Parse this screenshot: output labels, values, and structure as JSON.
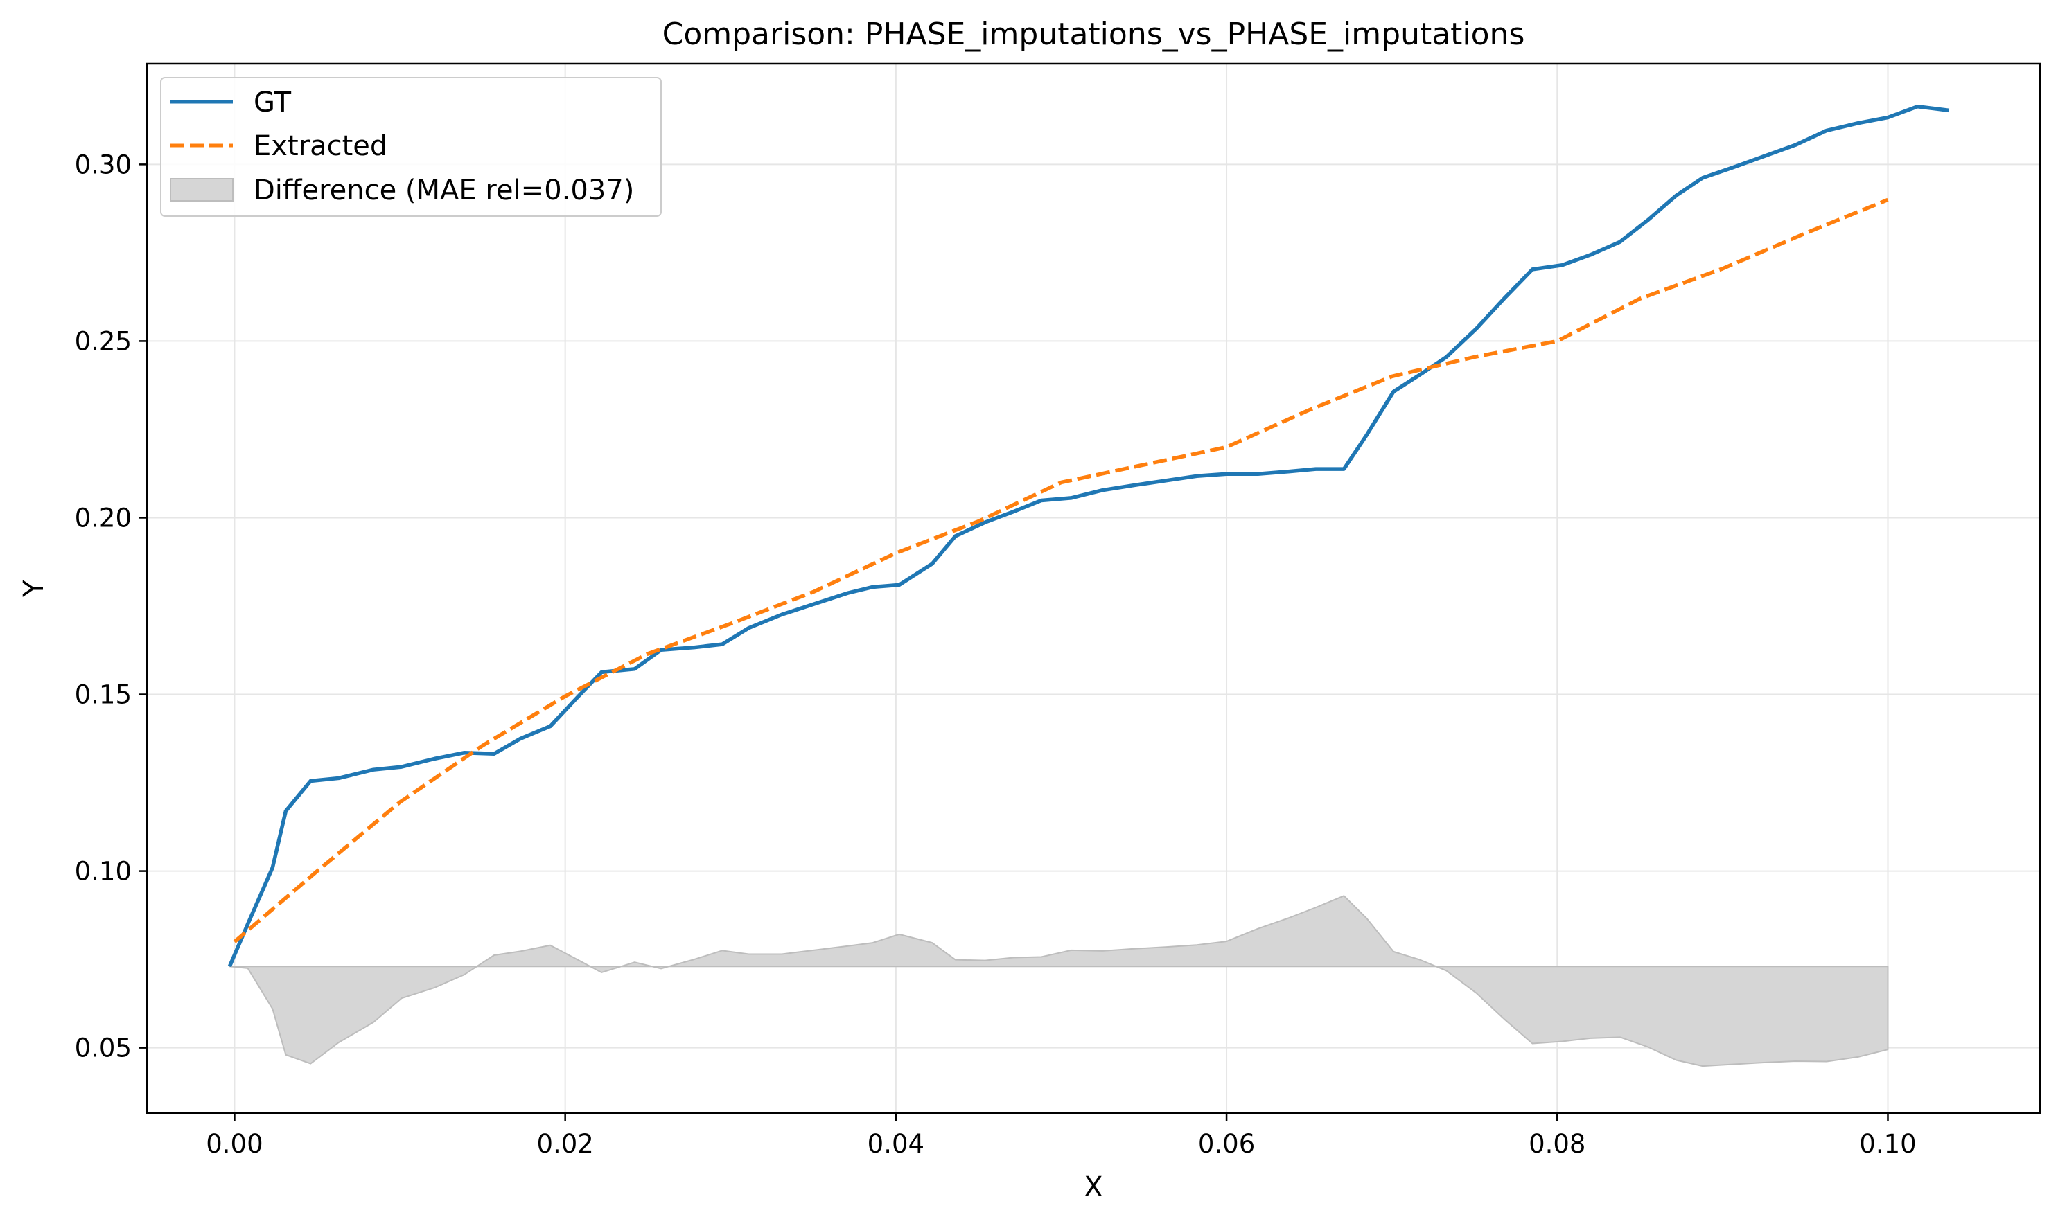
{
  "chart_data": {
    "type": "line",
    "title": "Comparison: PHASE_imputations_vs_PHASE_imputations",
    "xlabel": "X",
    "ylabel": "Y",
    "xlim": [
      -0.0053,
      0.1092
    ],
    "ylim": [
      0.0315,
      0.3285
    ],
    "xticks": [
      0.0,
      0.02,
      0.04,
      0.06,
      0.08,
      0.1
    ],
    "xtick_labels": [
      "0.00",
      "0.02",
      "0.04",
      "0.06",
      "0.08",
      "0.10"
    ],
    "yticks": [
      0.05,
      0.1,
      0.15,
      0.2,
      0.25,
      0.3
    ],
    "ytick_labels": [
      "0.05",
      "0.10",
      "0.15",
      "0.20",
      "0.25",
      "0.30"
    ],
    "grid": true,
    "legend_position": "top-left",
    "colors": {
      "gt": "#1f77b4",
      "extracted": "#ff7f0e",
      "difference": "#d6d6d6",
      "difference_edge": "#bdbdbd",
      "grid": "#e6e6e6",
      "axes": "#000000"
    },
    "series": [
      {
        "name": "GT",
        "style": "solid",
        "x": [
          -0.0003,
          0.0008,
          0.0023,
          0.0031,
          0.0046,
          0.0063,
          0.0084,
          0.0101,
          0.0121,
          0.0139,
          0.0157,
          0.0173,
          0.0191,
          0.0208,
          0.0222,
          0.0242,
          0.0258,
          0.0278,
          0.0295,
          0.0311,
          0.0331,
          0.0352,
          0.0371,
          0.0386,
          0.0402,
          0.0422,
          0.0436,
          0.0454,
          0.0471,
          0.0488,
          0.0506,
          0.0525,
          0.0544,
          0.0563,
          0.0582,
          0.06,
          0.0619,
          0.0638,
          0.0654,
          0.0671,
          0.0685,
          0.0701,
          0.0717,
          0.0733,
          0.0751,
          0.0768,
          0.0785,
          0.0803,
          0.082,
          0.0838,
          0.0855,
          0.0872,
          0.0888,
          0.0906,
          0.0925,
          0.0944,
          0.0963,
          0.0982,
          0.1,
          0.1018,
          0.1037
        ],
        "values": [
          0.073,
          0.085,
          0.101,
          0.117,
          0.1255,
          0.1263,
          0.1287,
          0.1295,
          0.1318,
          0.1335,
          0.1332,
          0.1375,
          0.141,
          0.1495,
          0.1563,
          0.1572,
          0.1626,
          0.1633,
          0.1642,
          0.1688,
          0.1726,
          0.1758,
          0.1787,
          0.1804,
          0.181,
          0.187,
          0.1948,
          0.1987,
          0.2017,
          0.2049,
          0.2056,
          0.2078,
          0.2092,
          0.2105,
          0.2118,
          0.2124,
          0.2124,
          0.2131,
          0.2138,
          0.2138,
          0.2236,
          0.2357,
          0.2405,
          0.2455,
          0.2535,
          0.2621,
          0.2703,
          0.2715,
          0.2744,
          0.2781,
          0.2843,
          0.2912,
          0.2962,
          0.2991,
          0.3023,
          0.3055,
          0.3096,
          0.3117,
          0.3133,
          0.3164,
          0.3153
        ]
      },
      {
        "name": "Extracted",
        "style": "dashed",
        "x": [
          0.0,
          0.005,
          0.01,
          0.015,
          0.02,
          0.025,
          0.03,
          0.035,
          0.04,
          0.045,
          0.05,
          0.055,
          0.06,
          0.065,
          0.07,
          0.075,
          0.08,
          0.085,
          0.09,
          0.095,
          0.1
        ],
        "values": [
          0.08,
          0.1,
          0.1195,
          0.1355,
          0.1495,
          0.1615,
          0.17,
          0.179,
          0.19,
          0.199,
          0.21,
          0.215,
          0.22,
          0.2305,
          0.24,
          0.2455,
          0.25,
          0.262,
          0.2705,
          0.2805,
          0.29
        ]
      }
    ],
    "difference": {
      "name": "Difference (MAE rel=0.037)",
      "baseline": 0.073,
      "x": [
        -0.0003,
        0.0008,
        0.0023,
        0.0031,
        0.0046,
        0.0063,
        0.0084,
        0.0101,
        0.0121,
        0.0139,
        0.0157,
        0.0173,
        0.0191,
        0.0208,
        0.0222,
        0.0242,
        0.0258,
        0.0278,
        0.0295,
        0.0311,
        0.0331,
        0.0352,
        0.0371,
        0.0386,
        0.0402,
        0.0422,
        0.0436,
        0.0454,
        0.0471,
        0.0488,
        0.0506,
        0.0525,
        0.0544,
        0.0563,
        0.0582,
        0.06,
        0.0619,
        0.0638,
        0.0654,
        0.0671,
        0.0685,
        0.0701,
        0.0717,
        0.0733,
        0.0751,
        0.0768,
        0.0785,
        0.0803,
        0.082,
        0.0838,
        0.0855,
        0.0872,
        0.0888,
        0.0906,
        0.0925,
        0.0944,
        0.0963,
        0.0982,
        0.1
      ],
      "values": [
        0.073,
        0.0725,
        0.061,
        0.048,
        0.0455,
        0.0515,
        0.0572,
        0.064,
        0.067,
        0.0707,
        0.0762,
        0.0773,
        0.079,
        0.0748,
        0.0713,
        0.0742,
        0.0724,
        0.075,
        0.0775,
        0.0765,
        0.0765,
        0.0777,
        0.0788,
        0.0797,
        0.0821,
        0.0797,
        0.0749,
        0.0747,
        0.0755,
        0.0757,
        0.0776,
        0.0774,
        0.078,
        0.0785,
        0.0791,
        0.0801,
        0.0837,
        0.0868,
        0.0897,
        0.093,
        0.0865,
        0.0772,
        0.0749,
        0.0718,
        0.0655,
        0.0581,
        0.0512,
        0.0518,
        0.0527,
        0.053,
        0.0502,
        0.0465,
        0.0448,
        0.0453,
        0.0458,
        0.0462,
        0.0461,
        0.0474,
        0.0495
      ]
    }
  }
}
